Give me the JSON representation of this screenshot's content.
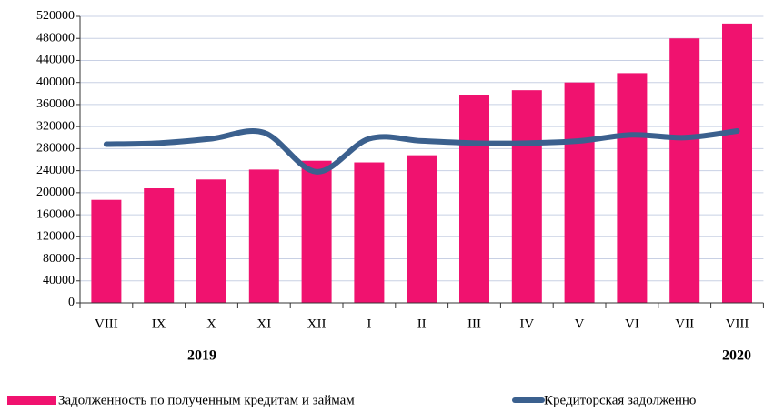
{
  "chart_data": {
    "type": "bar",
    "categories": [
      "VIII",
      "IX",
      "X",
      "XI",
      "XII",
      "I",
      "II",
      "III",
      "IV",
      "V",
      "VI",
      "VII",
      "VIII"
    ],
    "year_labels": [
      "2019",
      "2020"
    ],
    "series": [
      {
        "name": "Задолженность по полученным кредитам и займам",
        "type": "bar",
        "color": "#f0126f",
        "values": [
          187000,
          208000,
          224000,
          242000,
          258000,
          255000,
          268000,
          378000,
          386000,
          400000,
          417000,
          480000,
          507000
        ]
      },
      {
        "name": "Кредиторская задолженно",
        "type": "line",
        "color": "#3b608e",
        "values": [
          288000,
          290000,
          298000,
          309000,
          238000,
          298000,
          294000,
          290000,
          290000,
          294000,
          305000,
          300000,
          312000
        ]
      }
    ],
    "ylim": [
      0,
      520000
    ],
    "yticks": [
      0,
      40000,
      80000,
      120000,
      160000,
      200000,
      240000,
      280000,
      320000,
      360000,
      400000,
      440000,
      480000,
      520000
    ],
    "grid": true
  }
}
